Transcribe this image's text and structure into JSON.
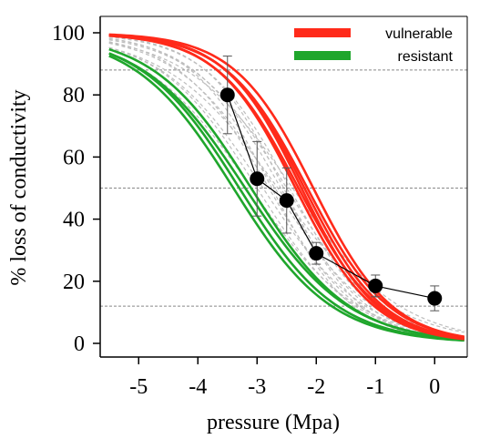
{
  "chart_data": {
    "type": "line",
    "xlabel": "pressure (Mpa)",
    "ylabel": "% loss of conductivity",
    "xlim": [
      -5.65,
      0.55
    ],
    "ylim": [
      0,
      100
    ],
    "x_ticks": [
      "-5",
      "-4",
      "-3",
      "-2",
      "-1",
      "0"
    ],
    "x_tick_values": [
      -5,
      -4,
      -3,
      -2,
      -1,
      0
    ],
    "y_ticks": [
      "0",
      "20",
      "40",
      "60",
      "80",
      "100"
    ],
    "y_tick_values": [
      0,
      20,
      40,
      60,
      80,
      100
    ],
    "reference_lines_y": [
      12,
      50,
      88
    ],
    "legend": {
      "placement": "top-right",
      "entries": [
        {
          "label": "vulnerable",
          "color": "#ff2a1a"
        },
        {
          "label": "resistant",
          "color": "#1fa62c"
        }
      ]
    },
    "colors": {
      "vulnerable": "#ff2a1a",
      "resistant": "#1fa62c",
      "background_curves": "#bdbdbd",
      "observed": "#000000"
    },
    "curve_groups": [
      {
        "group": "vulnerable",
        "curves": [
          {
            "p50": -2.35,
            "slope": 1.5
          },
          {
            "p50": -2.3,
            "slope": 1.45
          },
          {
            "p50": -2.25,
            "slope": 1.55
          },
          {
            "p50": -2.2,
            "slope": 1.5
          },
          {
            "p50": -2.15,
            "slope": 1.45
          },
          {
            "p50": -2.05,
            "slope": 1.5
          }
        ]
      },
      {
        "group": "resistant",
        "curves": [
          {
            "p50": -3.4,
            "slope": 1.2
          },
          {
            "p50": -3.3,
            "slope": 1.2
          },
          {
            "p50": -3.2,
            "slope": 1.15
          },
          {
            "p50": -3.1,
            "slope": 1.2
          }
        ]
      },
      {
        "group": "background",
        "curves": [
          {
            "p50": -3.1,
            "slope": 1.1
          },
          {
            "p50": -3.0,
            "slope": 1.2
          },
          {
            "p50": -2.9,
            "slope": 1.15
          },
          {
            "p50": -2.8,
            "slope": 1.3
          },
          {
            "p50": -2.7,
            "slope": 1.2
          },
          {
            "p50": -2.6,
            "slope": 1.35
          },
          {
            "p50": -2.5,
            "slope": 1.25
          },
          {
            "p50": -2.45,
            "slope": 1.4
          },
          {
            "p50": -2.4,
            "slope": 1.1
          },
          {
            "p50": -2.55,
            "slope": 1.5
          },
          {
            "p50": -2.65,
            "slope": 1.05
          },
          {
            "p50": -2.75,
            "slope": 1.45
          }
        ]
      }
    ],
    "observed": {
      "x": [
        -3.5,
        -3.0,
        -2.5,
        -2.0,
        -1.0,
        0.0
      ],
      "y": [
        80,
        53,
        46,
        29,
        18.5,
        14.5
      ],
      "error": [
        12.5,
        12,
        10.5,
        3.5,
        3.5,
        4
      ]
    }
  }
}
